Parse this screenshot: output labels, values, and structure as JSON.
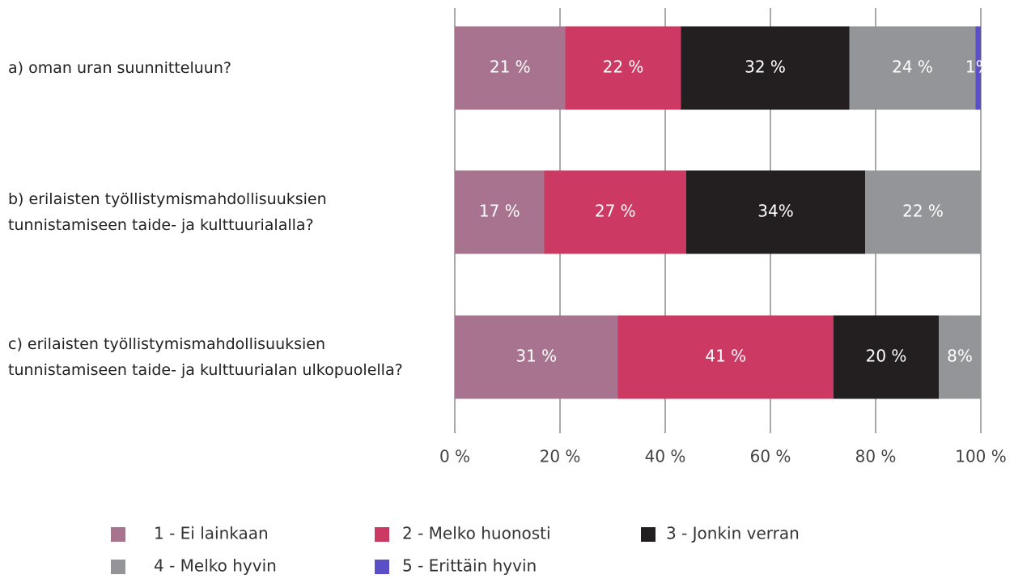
{
  "chart_data": {
    "type": "stacked_bar_horizontal",
    "categories": [
      "a) oman uran suunnitteluun?",
      "b) erilaisten työllistymismahdollisuuksien\ntunnistamiseen taide- ja kulttuurialalla?",
      "c) erilaisten työllistymismahdollisuuksien\ntunnistamiseen taide- ja kulttuurialan ulkopuolella?"
    ],
    "series": [
      {
        "name": "1 - Ei lainkaan",
        "color": "#a8738e",
        "values": [
          21,
          17,
          31
        ],
        "value_labels": [
          "21 %",
          "17 %",
          "31 %"
        ]
      },
      {
        "name": "2 - Melko huonosti",
        "color": "#cc3a63",
        "values": [
          22,
          27,
          41
        ],
        "value_labels": [
          "22 %",
          "27 %",
          "41 %"
        ]
      },
      {
        "name": "3 - Jonkin verran",
        "color": "#231f20",
        "values": [
          32,
          34,
          20
        ],
        "value_labels": [
          "32 %",
          "34%",
          "20 %"
        ]
      },
      {
        "name": "4 - Melko hyvin",
        "color": "#939598",
        "values": [
          24,
          22,
          8
        ],
        "value_labels": [
          "24 %",
          "22 %",
          "8%"
        ]
      },
      {
        "name": "5 - Erittäin hyvin",
        "color": "#5b4fc8",
        "values": [
          1,
          null,
          null
        ],
        "value_labels": [
          "1%",
          null,
          null
        ]
      }
    ],
    "xlim": [
      0,
      100
    ],
    "xticks": [
      {
        "value": 0,
        "label": "0 %"
      },
      {
        "value": 20,
        "label": "20 %"
      },
      {
        "value": 40,
        "label": "40 %"
      },
      {
        "value": 60,
        "label": "60 %"
      },
      {
        "value": 80,
        "label": "80 %"
      },
      {
        "value": 100,
        "label": "100 %"
      }
    ],
    "grid": true
  }
}
